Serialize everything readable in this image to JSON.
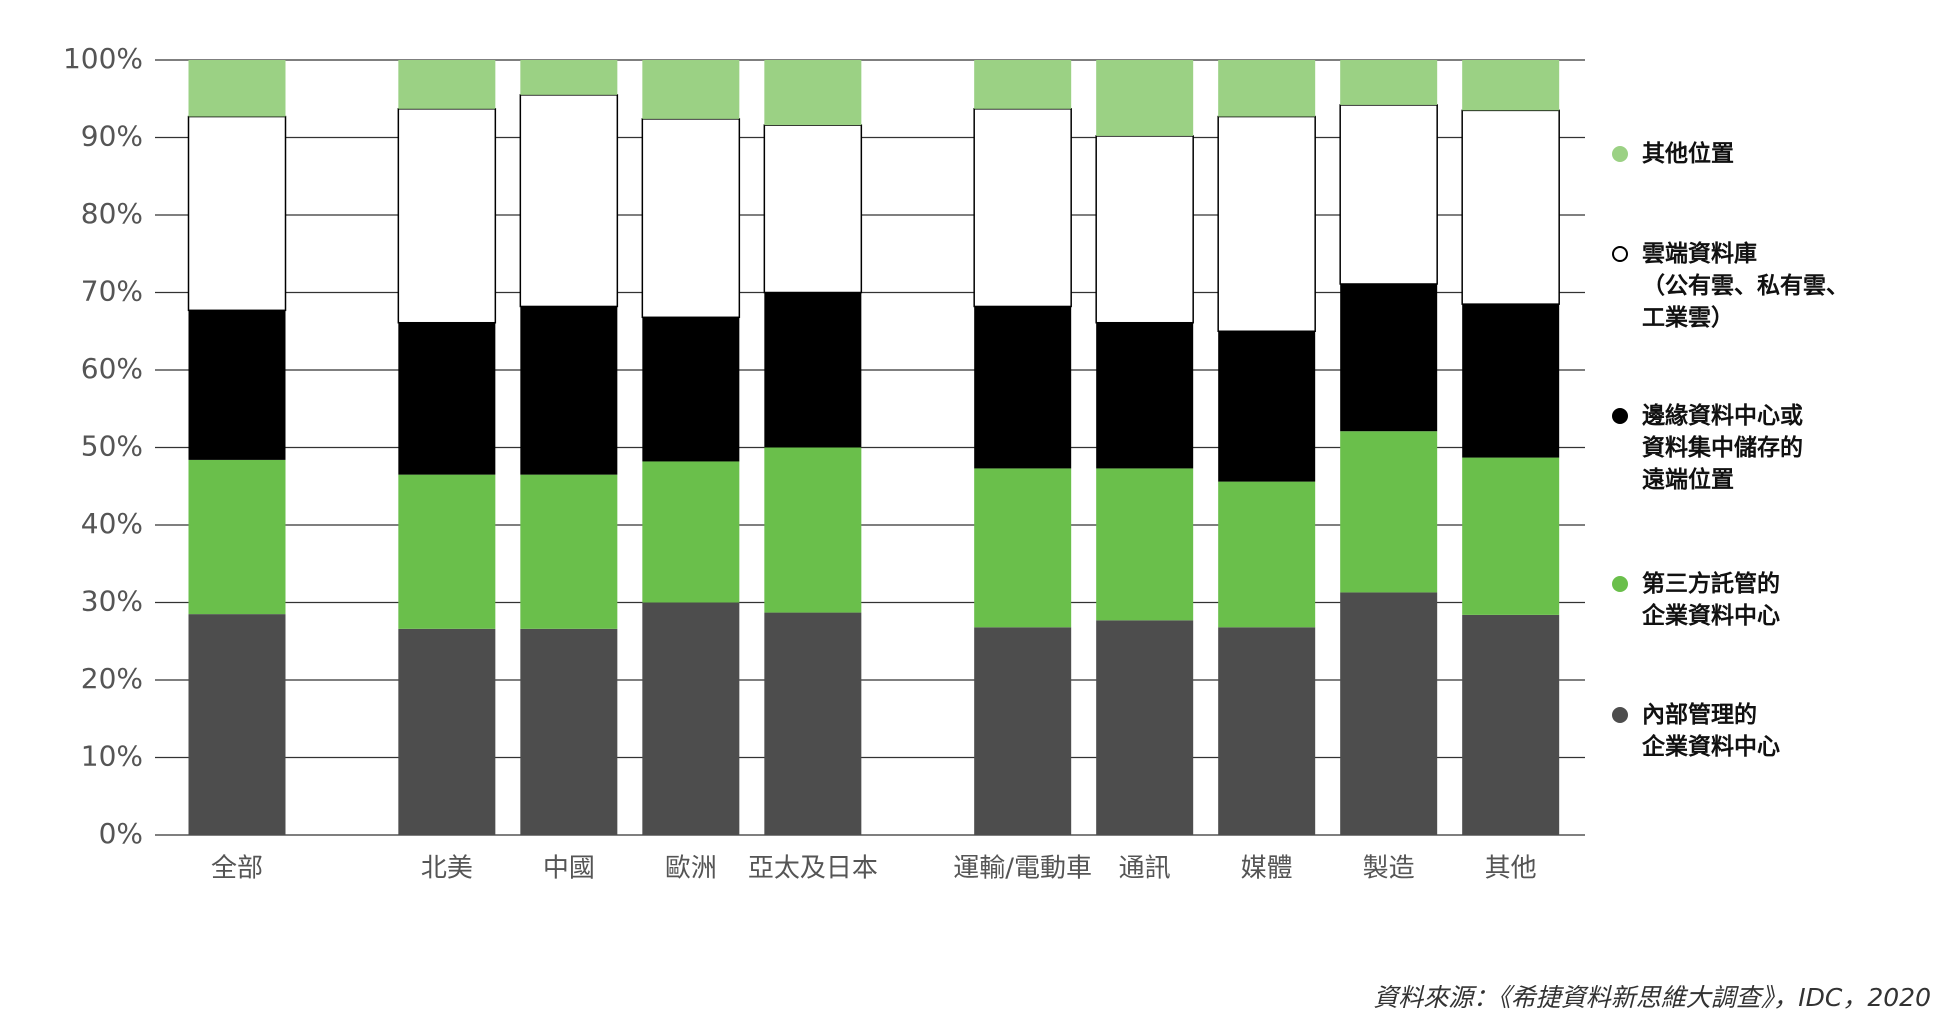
{
  "chart_data": {
    "type": "stacked_bar",
    "categories": [
      "全部",
      "北美",
      "中國",
      "歐洲",
      "亞太及日本",
      "運輸/電動車",
      "通訊",
      "媒體",
      "製造",
      "其他"
    ],
    "series": [
      {
        "name": "內部管理的\n企業資料中心",
        "color": "#4d4d4d",
        "values": [
          28.5,
          26.6,
          26.6,
          30.0,
          28.7,
          26.8,
          27.7,
          26.8,
          31.3,
          28.4
        ]
      },
      {
        "name": "第三方託管的\n企業資料中心",
        "color": "#6abf4b",
        "values": [
          19.9,
          19.9,
          19.9,
          18.2,
          21.3,
          20.5,
          19.6,
          18.8,
          20.8,
          20.3
        ]
      },
      {
        "name": "邊緣資料中心或\n資料集中儲存的\n遠端位置",
        "color": "#000000",
        "values": [
          19.3,
          19.6,
          21.7,
          18.6,
          20.0,
          20.9,
          18.8,
          19.4,
          19.0,
          19.8
        ]
      },
      {
        "name": "雲端資料庫\n（公有雲、私有雲、\n工業雲）",
        "color": "#ffffff",
        "values": [
          25.0,
          27.6,
          27.3,
          25.6,
          21.6,
          25.5,
          24.1,
          27.7,
          23.1,
          25.0
        ]
      },
      {
        "name": "其他位置",
        "color": "#9bd184",
        "values": [
          7.3,
          6.3,
          4.5,
          7.6,
          8.4,
          6.3,
          9.8,
          7.3,
          5.8,
          6.5
        ]
      }
    ],
    "ylim": [
      0,
      100
    ],
    "yticks": [
      {
        "value": 0,
        "label": "0%"
      },
      {
        "value": 10,
        "label": "10%"
      },
      {
        "value": 20,
        "label": "20%"
      },
      {
        "value": 30,
        "label": "30%"
      },
      {
        "value": 40,
        "label": "40%"
      },
      {
        "value": 50,
        "label": "50%"
      },
      {
        "value": 60,
        "label": "60%"
      },
      {
        "value": 70,
        "label": "70%"
      },
      {
        "value": 80,
        "label": "80%"
      },
      {
        "value": 90,
        "label": "90%"
      },
      {
        "value": 100,
        "label": "100%"
      }
    ],
    "grid": true,
    "source": "資料來源：《希捷資料新思維大調查》，IDC，2020"
  }
}
